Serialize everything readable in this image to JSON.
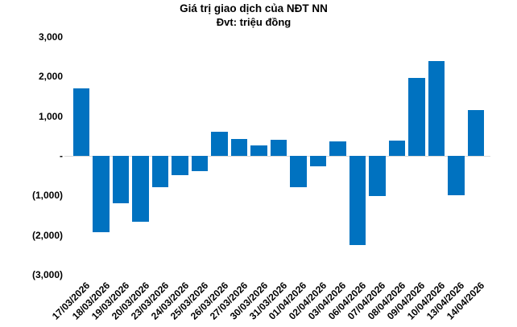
{
  "chart_data": {
    "type": "bar",
    "title": "Giá trị giao dịch của NĐT NN",
    "subtitle": "Đvt: triệu đồng",
    "categories": [
      "17/03/2026",
      "18/03/2026",
      "19/03/2026",
      "20/03/2026",
      "23/03/2026",
      "24/03/2026",
      "25/03/2026",
      "26/03/2026",
      "27/03/2026",
      "30/03/2026",
      "31/03/2026",
      "01/04/2026",
      "02/04/2026",
      "03/04/2026",
      "06/04/2026",
      "07/04/2026",
      "08/04/2026",
      "09/04/2026",
      "10/04/2026",
      "13/04/2026",
      "14/04/2026"
    ],
    "values": [
      1700,
      -1930,
      -1200,
      -1670,
      -800,
      -490,
      -390,
      600,
      420,
      270,
      400,
      -800,
      -270,
      370,
      -2250,
      -1020,
      390,
      1970,
      2400,
      -1000,
      1160
    ],
    "xlabel": "",
    "ylabel": "",
    "ylim": [
      -3000,
      3000
    ],
    "yticks": [
      3000,
      2000,
      1000,
      0,
      -1000,
      -2000,
      -3000
    ],
    "ytick_labels": [
      "3,000",
      "2,000",
      "1,000",
      "-",
      "(1,000)",
      "(2,000)",
      "(3,000)"
    ],
    "grid": false,
    "legend_position": "none",
    "bar_color": "#0072C0",
    "axis_line_color": "#D9D9D9",
    "text_color": "#000000",
    "background_color": "#FFFFFF"
  }
}
